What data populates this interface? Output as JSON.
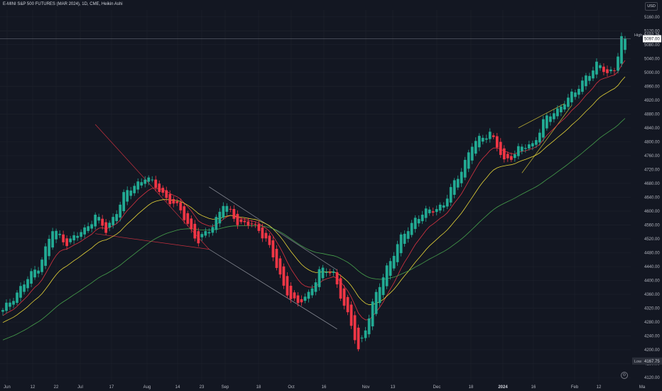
{
  "header": {
    "title": "E-MINI S&P 500 FUTURES (MAR 2024), 1D, CME, Heikin Ashi",
    "currency": "USD"
  },
  "price_labels": {
    "high_label": "High",
    "high_value": "5107.75",
    "last_value": "5097.00",
    "low_label": "Low",
    "low_value": "4167.75"
  },
  "chart_data": {
    "type": "candlestick",
    "title": "E-MINI S&P 500 FUTURES (MAR 2024), 1D, CME, Heikin Ashi",
    "y_ticks": [
      5160,
      5120,
      5080,
      5040,
      5000,
      4960,
      4920,
      4880,
      4840,
      4800,
      4760,
      4720,
      4680,
      4640,
      4600,
      4560,
      4520,
      4480,
      4440,
      4400,
      4360,
      4320,
      4280,
      4240,
      4200,
      4160,
      4120
    ],
    "x_ticks": [
      "Jun",
      "12",
      "22",
      "Jul",
      "17",
      "Aug",
      "14",
      "23",
      "Sep",
      "18",
      "Oct",
      "16",
      "Nov",
      "13",
      "Dec",
      "18",
      "2024",
      "16",
      "Feb",
      "12",
      "Ma"
    ],
    "ylim": [
      4110,
      5180
    ],
    "keypoints": [
      {
        "i": 0,
        "v": 4310
      },
      {
        "i": 5,
        "v": 4380
      },
      {
        "i": 10,
        "v": 4440
      },
      {
        "i": 14,
        "v": 4545
      },
      {
        "i": 18,
        "v": 4510
      },
      {
        "i": 23,
        "v": 4545
      },
      {
        "i": 26,
        "v": 4590
      },
      {
        "i": 29,
        "v": 4540
      },
      {
        "i": 34,
        "v": 4645
      },
      {
        "i": 40,
        "v": 4700
      },
      {
        "i": 45,
        "v": 4650
      },
      {
        "i": 50,
        "v": 4600
      },
      {
        "i": 55,
        "v": 4510
      },
      {
        "i": 59,
        "v": 4560
      },
      {
        "i": 62,
        "v": 4620
      },
      {
        "i": 66,
        "v": 4570
      },
      {
        "i": 70,
        "v": 4560
      },
      {
        "i": 74,
        "v": 4525
      },
      {
        "i": 79,
        "v": 4380
      },
      {
        "i": 83,
        "v": 4330
      },
      {
        "i": 86,
        "v": 4360
      },
      {
        "i": 89,
        "v": 4430
      },
      {
        "i": 93,
        "v": 4420
      },
      {
        "i": 96,
        "v": 4330
      },
      {
        "i": 100,
        "v": 4200
      },
      {
        "i": 104,
        "v": 4330
      },
      {
        "i": 108,
        "v": 4440
      },
      {
        "i": 112,
        "v": 4520
      },
      {
        "i": 116,
        "v": 4580
      },
      {
        "i": 120,
        "v": 4600
      },
      {
        "i": 124,
        "v": 4620
      },
      {
        "i": 128,
        "v": 4700
      },
      {
        "i": 132,
        "v": 4790
      },
      {
        "i": 137,
        "v": 4830
      },
      {
        "i": 141,
        "v": 4740
      },
      {
        "i": 145,
        "v": 4780
      },
      {
        "i": 149,
        "v": 4790
      },
      {
        "i": 152,
        "v": 4860
      },
      {
        "i": 156,
        "v": 4890
      },
      {
        "i": 158,
        "v": 4920
      },
      {
        "i": 161,
        "v": 4940
      },
      {
        "i": 164,
        "v": 4990
      },
      {
        "i": 167,
        "v": 5020
      },
      {
        "i": 170,
        "v": 5000
      },
      {
        "i": 172,
        "v": 5010
      },
      {
        "i": 174,
        "v": 5097
      }
    ],
    "series": [
      {
        "name": "",
        "color": "#f23645",
        "kind": "ema",
        "period": 10
      },
      {
        "name": "",
        "color": "#ffeb3b",
        "kind": "ema",
        "period": 20
      },
      {
        "name": "",
        "color": "#4caf50",
        "kind": "ema",
        "period": 50
      }
    ],
    "trendlines": [
      {
        "color": "#f23645",
        "points": [
          [
            26,
            4850
          ],
          [
            58,
            4490
          ]
        ]
      },
      {
        "color": "#f23645",
        "points": [
          [
            26,
            4535
          ],
          [
            58,
            4490
          ]
        ]
      },
      {
        "color": "#b2b5be",
        "points": [
          [
            58,
            4670
          ],
          [
            94,
            4430
          ]
        ]
      },
      {
        "color": "#b2b5be",
        "points": [
          [
            58,
            4490
          ],
          [
            94,
            4260
          ]
        ]
      },
      {
        "color": "#ffeb3b",
        "points": [
          [
            145,
            4840
          ],
          [
            158,
            4910
          ]
        ]
      },
      {
        "color": "#ffeb3b",
        "points": [
          [
            146,
            4710
          ],
          [
            160,
            4905
          ]
        ]
      }
    ],
    "high": 5107.75,
    "low": 4167.75,
    "last": 5097.0,
    "colors": {
      "up": "#22ab94",
      "down": "#f23645",
      "background": "#131722",
      "grid": "#1e222d"
    }
  }
}
